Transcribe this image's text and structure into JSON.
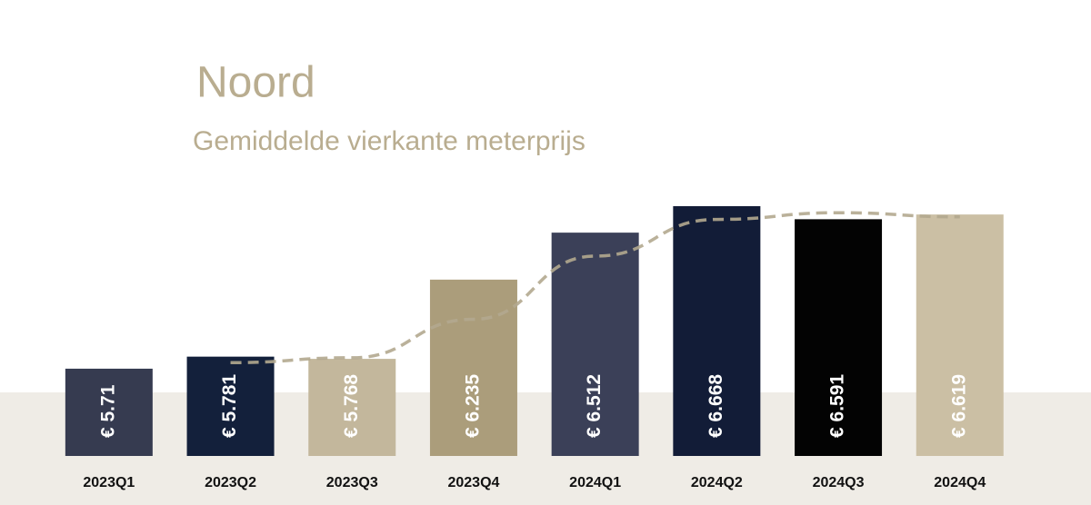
{
  "chart_data": {
    "type": "bar",
    "title": "Noord",
    "subtitle": "Gemiddelde vierkante meterprijs",
    "categories": [
      "2023Q1",
      "2023Q2",
      "2023Q3",
      "2023Q4",
      "2024Q1",
      "2024Q2",
      "2024Q3",
      "2024Q4"
    ],
    "values": [
      5.71,
      5.781,
      5.768,
      6.235,
      6.512,
      6.668,
      6.591,
      6.619
    ],
    "value_labels": [
      "€ 5.71",
      "€ 5.781",
      "€ 5.768",
      "€ 6.235",
      "€ 6.512",
      "€ 6.668",
      "€ 6.591",
      "€ 6.619"
    ],
    "colors": [
      "#363b50",
      "#13203b",
      "#c3b79c",
      "#ab9d7b",
      "#3b4058",
      "#121c37",
      "#030303",
      "#cbbfa4"
    ]
  }
}
